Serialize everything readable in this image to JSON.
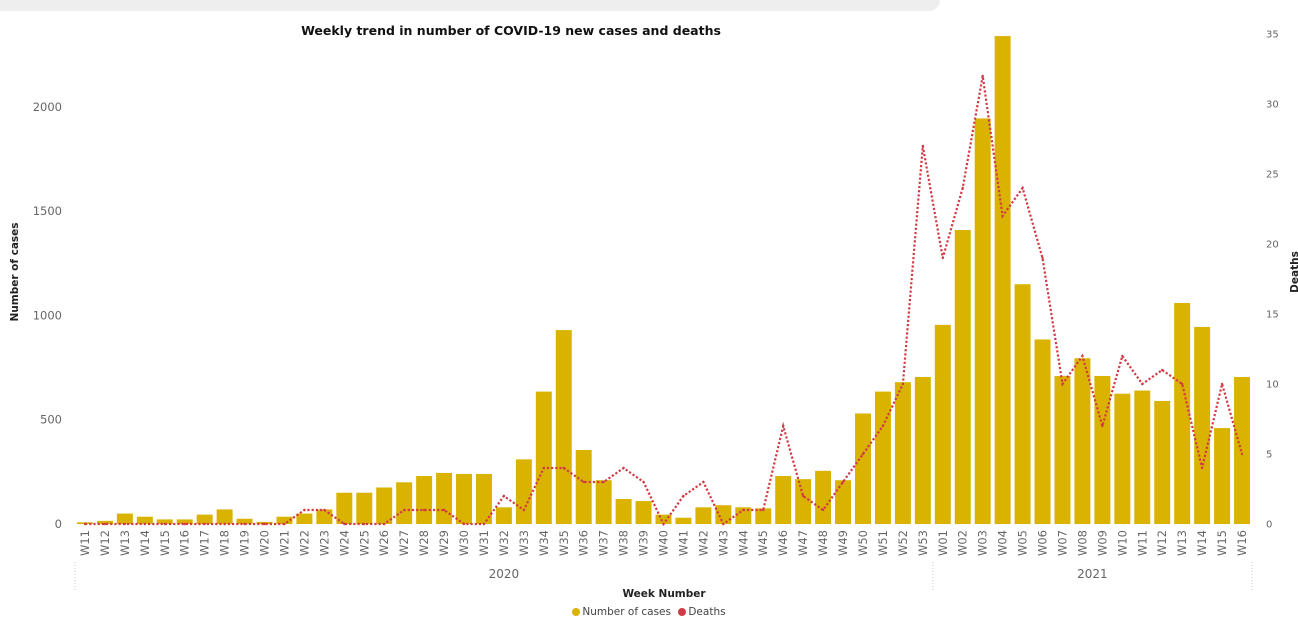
{
  "chart_data": {
    "type": "bar",
    "title": "Weekly trend in number of  COVID-19 new cases and deaths",
    "xlabel": "Week Number",
    "ylabel": "Number of cases",
    "y2label": "Deaths",
    "ylim": [
      0,
      2350
    ],
    "y2lim": [
      0,
      35
    ],
    "yticks": [
      0,
      500,
      1000,
      1500,
      2000
    ],
    "y2ticks": [
      0,
      5,
      10,
      15,
      20,
      25,
      30,
      35
    ],
    "grid": false,
    "legend_position": "bottom",
    "categories": [
      "W11",
      "W12",
      "W13",
      "W14",
      "W15",
      "W16",
      "W17",
      "W18",
      "W19",
      "W20",
      "W21",
      "W22",
      "W23",
      "W24",
      "W25",
      "W26",
      "W27",
      "W28",
      "W29",
      "W30",
      "W31",
      "W32",
      "W33",
      "W34",
      "W35",
      "W36",
      "W37",
      "W38",
      "W39",
      "W40",
      "W41",
      "W42",
      "W43",
      "W44",
      "W45",
      "W46",
      "W47",
      "W48",
      "W49",
      "W50",
      "W51",
      "W52",
      "W53",
      "W01",
      "W02",
      "W03",
      "W04",
      "W05",
      "W06",
      "W07",
      "W08",
      "W09",
      "W10",
      "W11",
      "W12",
      "W13",
      "W14",
      "W15",
      "W16"
    ],
    "year_groups": [
      {
        "label": "2020",
        "count": 43
      },
      {
        "label": "2021",
        "count": 16
      }
    ],
    "series": [
      {
        "name": "Number of cases",
        "type": "bar",
        "axis": "left",
        "color": "#d9b300",
        "values": [
          8,
          15,
          50,
          35,
          22,
          22,
          45,
          70,
          25,
          10,
          35,
          50,
          70,
          150,
          150,
          175,
          200,
          230,
          245,
          240,
          240,
          80,
          310,
          635,
          930,
          355,
          210,
          120,
          110,
          45,
          30,
          80,
          90,
          80,
          75,
          230,
          215,
          255,
          210,
          530,
          635,
          680,
          705,
          955,
          1410,
          1945,
          2340,
          1150,
          885,
          710,
          795,
          710,
          625,
          640,
          590,
          1060,
          945,
          460,
          705
        ]
      },
      {
        "name": "Deaths",
        "type": "line",
        "axis": "right",
        "color": "#d13b45",
        "values": [
          0,
          0,
          0,
          0,
          0,
          0,
          0,
          0,
          0,
          0,
          0,
          1,
          1,
          0,
          0,
          0,
          1,
          1,
          1,
          0,
          0,
          2,
          1,
          4,
          4,
          3,
          3,
          4,
          3,
          0,
          2,
          3,
          0,
          1,
          1,
          7,
          2,
          1,
          3,
          5,
          7,
          10,
          27,
          19,
          24,
          32,
          22,
          24,
          19,
          10,
          12,
          7,
          12,
          10,
          11,
          10,
          4,
          10,
          5
        ]
      }
    ]
  }
}
